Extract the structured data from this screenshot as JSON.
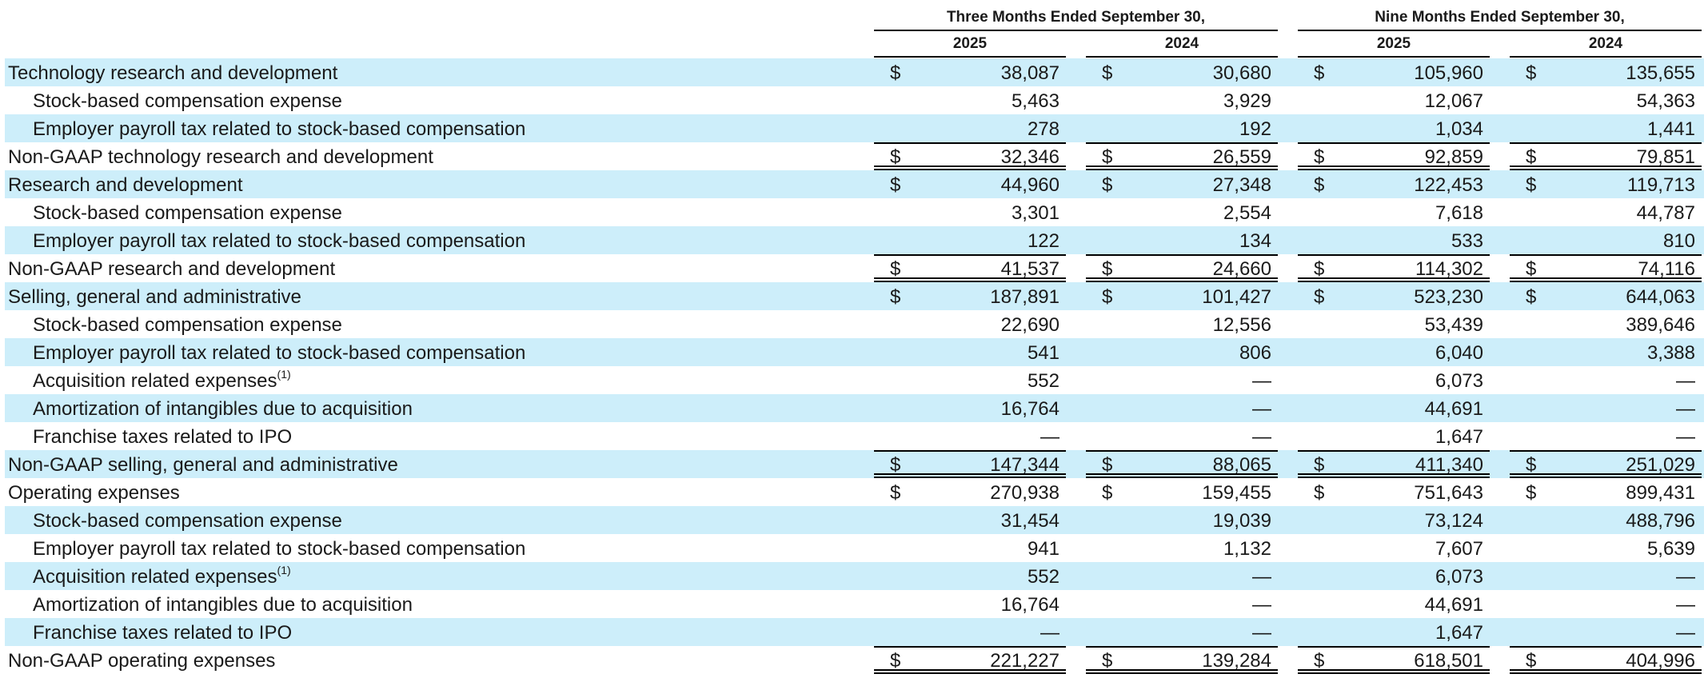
{
  "header": {
    "group_labels": [
      "Three Months Ended September 30,",
      "Nine Months Ended September 30,"
    ],
    "year_labels": [
      "2025",
      "2024",
      "2025",
      "2024"
    ]
  },
  "rows": [
    {
      "label": "Technology research and development",
      "indent": false,
      "dollar": true,
      "values": [
        "38,087",
        "30,680",
        "105,960",
        "135,655"
      ],
      "top_rule": false,
      "double_rule": false
    },
    {
      "label": "Stock-based compensation expense",
      "indent": true,
      "dollar": false,
      "values": [
        "5,463",
        "3,929",
        "12,067",
        "54,363"
      ],
      "top_rule": false,
      "double_rule": false
    },
    {
      "label": "Employer payroll tax related to stock-based compensation",
      "indent": true,
      "dollar": false,
      "values": [
        "278",
        "192",
        "1,034",
        "1,441"
      ],
      "top_rule": false,
      "double_rule": false
    },
    {
      "label": "Non-GAAP technology research and development",
      "indent": false,
      "dollar": true,
      "values": [
        "32,346",
        "26,559",
        "92,859",
        "79,851"
      ],
      "top_rule": true,
      "double_rule": true
    },
    {
      "label": "Research and development",
      "indent": false,
      "dollar": true,
      "values": [
        "44,960",
        "27,348",
        "122,453",
        "119,713"
      ],
      "top_rule": false,
      "double_rule": false
    },
    {
      "label": "Stock-based compensation expense",
      "indent": true,
      "dollar": false,
      "values": [
        "3,301",
        "2,554",
        "7,618",
        "44,787"
      ],
      "top_rule": false,
      "double_rule": false
    },
    {
      "label": "Employer payroll tax related to stock-based compensation",
      "indent": true,
      "dollar": false,
      "values": [
        "122",
        "134",
        "533",
        "810"
      ],
      "top_rule": false,
      "double_rule": false
    },
    {
      "label": "Non-GAAP research and development",
      "indent": false,
      "dollar": true,
      "values": [
        "41,537",
        "24,660",
        "114,302",
        "74,116"
      ],
      "top_rule": true,
      "double_rule": true
    },
    {
      "label": "Selling, general and administrative",
      "indent": false,
      "dollar": true,
      "values": [
        "187,891",
        "101,427",
        "523,230",
        "644,063"
      ],
      "top_rule": false,
      "double_rule": false
    },
    {
      "label": "Stock-based compensation expense",
      "indent": true,
      "dollar": false,
      "values": [
        "22,690",
        "12,556",
        "53,439",
        "389,646"
      ],
      "top_rule": false,
      "double_rule": false
    },
    {
      "label": "Employer payroll tax related to stock-based compensation",
      "indent": true,
      "dollar": false,
      "values": [
        "541",
        "806",
        "6,040",
        "3,388"
      ],
      "top_rule": false,
      "double_rule": false
    },
    {
      "label": "Acquisition related expenses",
      "footnote": "(1)",
      "indent": true,
      "dollar": false,
      "values": [
        "552",
        "—",
        "6,073",
        "—"
      ],
      "top_rule": false,
      "double_rule": false
    },
    {
      "label": "Amortization of intangibles due to acquisition",
      "indent": true,
      "dollar": false,
      "values": [
        "16,764",
        "—",
        "44,691",
        "—"
      ],
      "top_rule": false,
      "double_rule": false
    },
    {
      "label": "Franchise taxes related to IPO",
      "indent": true,
      "dollar": false,
      "values": [
        "—",
        "—",
        "1,647",
        "—"
      ],
      "top_rule": false,
      "double_rule": false
    },
    {
      "label": "Non-GAAP selling, general and administrative",
      "indent": false,
      "dollar": true,
      "values": [
        "147,344",
        "88,065",
        "411,340",
        "251,029"
      ],
      "top_rule": true,
      "double_rule": true
    },
    {
      "label": "Operating expenses",
      "indent": false,
      "dollar": true,
      "values": [
        "270,938",
        "159,455",
        "751,643",
        "899,431"
      ],
      "top_rule": false,
      "double_rule": false
    },
    {
      "label": "Stock-based compensation expense",
      "indent": true,
      "dollar": false,
      "values": [
        "31,454",
        "19,039",
        "73,124",
        "488,796"
      ],
      "top_rule": false,
      "double_rule": false
    },
    {
      "label": "Employer payroll tax related to stock-based compensation",
      "indent": true,
      "dollar": false,
      "values": [
        "941",
        "1,132",
        "7,607",
        "5,639"
      ],
      "top_rule": false,
      "double_rule": false
    },
    {
      "label": "Acquisition related expenses",
      "footnote": "(1)",
      "indent": true,
      "dollar": false,
      "values": [
        "552",
        "—",
        "6,073",
        "—"
      ],
      "top_rule": false,
      "double_rule": false
    },
    {
      "label": "Amortization of intangibles due to acquisition",
      "indent": true,
      "dollar": false,
      "values": [
        "16,764",
        "—",
        "44,691",
        "—"
      ],
      "top_rule": false,
      "double_rule": false
    },
    {
      "label": "Franchise taxes related to IPO",
      "indent": true,
      "dollar": false,
      "values": [
        "—",
        "—",
        "1,647",
        "—"
      ],
      "top_rule": false,
      "double_rule": false
    },
    {
      "label": "Non-GAAP operating expenses",
      "indent": false,
      "dollar": true,
      "values": [
        "221,227",
        "139,284",
        "618,501",
        "404,996"
      ],
      "top_rule": true,
      "double_rule": true
    }
  ],
  "colors": {
    "row_shade": "#cdeefa",
    "rule": "#000000",
    "text": "#1a1a1a"
  },
  "dollar_sign": "$"
}
